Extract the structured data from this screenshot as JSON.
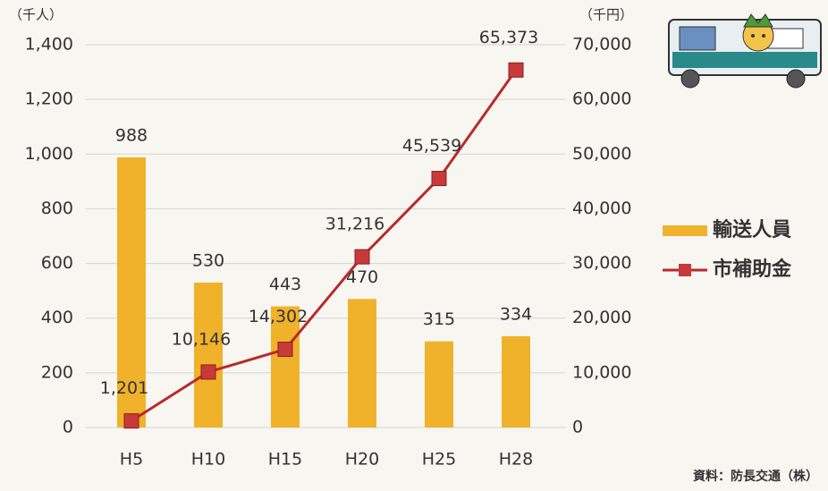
{
  "chart_data": {
    "type": "combo",
    "y_label": "（千人）",
    "y2_label": "（千円）",
    "categories": [
      "H5",
      "H10",
      "H15",
      "H20",
      "H25",
      "H28"
    ],
    "series": [
      {
        "name": "輸送人員",
        "type": "bar",
        "color": "#f0b12b",
        "values": [
          988,
          530,
          443,
          470,
          315,
          334
        ]
      },
      {
        "name": "市補助金",
        "type": "line",
        "axis": "y2",
        "color": "#b82a2a",
        "marker_color": "#c8393a",
        "values": [
          1201,
          10146,
          14302,
          31216,
          45539,
          65373
        ],
        "value_labels": [
          "1,201",
          "10,146",
          "14,302",
          "31,216",
          "45,539",
          "65,373"
        ]
      }
    ],
    "ylim": [
      0,
      1400
    ],
    "yticks": [
      0,
      200,
      400,
      600,
      800,
      {
        "value": 1000,
        "label": "1,000"
      },
      {
        "value": 1200,
        "label": "1,200"
      },
      {
        "value": 1400,
        "label": "1,400"
      }
    ],
    "y2lim": [
      0,
      70000
    ],
    "y2ticks": [
      0,
      {
        "value": 10000,
        "label": "10,000"
      },
      {
        "value": 20000,
        "label": "20,000"
      },
      {
        "value": 30000,
        "label": "30,000"
      },
      {
        "value": 40000,
        "label": "40,000"
      },
      {
        "value": 50000,
        "label": "50,000"
      },
      {
        "value": 60000,
        "label": "60,000"
      },
      {
        "value": 70000,
        "label": "70,000"
      }
    ],
    "grid": true,
    "legend": "right",
    "source": "資料：防長交通（株）"
  }
}
